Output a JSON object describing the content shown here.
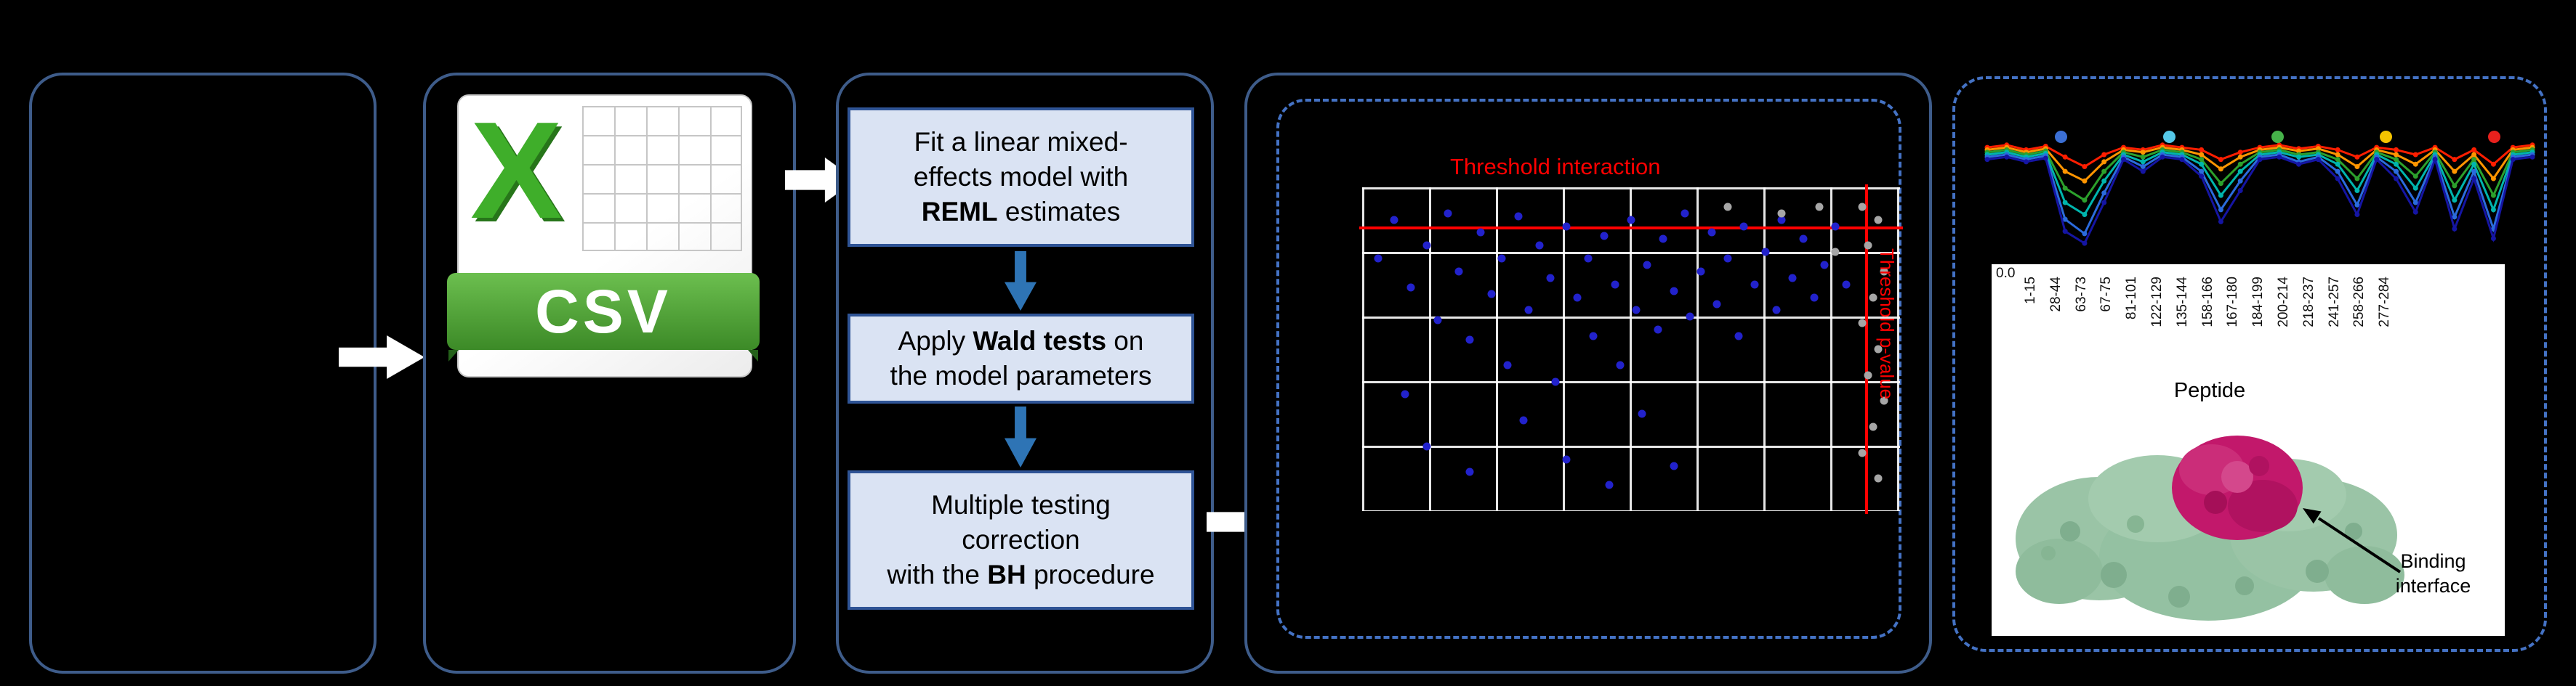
{
  "canvas": {
    "background": "#000000"
  },
  "csv_icon": {
    "x_label": "X",
    "banner_label": "CSV"
  },
  "steps": [
    {
      "segments": [
        {
          "text": "Fit a linear mixed-"
        },
        {
          "br": true
        },
        {
          "text": "effects model with"
        },
        {
          "br": true
        },
        {
          "text": "REML",
          "bold": true
        },
        {
          "text": " estimates"
        }
      ]
    },
    {
      "segments": [
        {
          "text": "Apply "
        },
        {
          "text": "Wald tests",
          "bold": true
        },
        {
          "text": " on"
        },
        {
          "br": true
        },
        {
          "text": "the model parameters"
        }
      ]
    },
    {
      "segments": [
        {
          "text": "Multiple testing"
        },
        {
          "br": true
        },
        {
          "text": "correction"
        },
        {
          "br": true
        },
        {
          "text": "with the "
        },
        {
          "text": "BH",
          "bold": true
        },
        {
          "text": " procedure"
        }
      ]
    }
  ],
  "scatter": {
    "title": "Threshold interaction",
    "side_label": "Threshold p-value",
    "point_color_primary": "#2222cc",
    "point_color_secondary": "#a6a6a6",
    "threshold_color": "#ff0000",
    "h_threshold_pct": 12,
    "v_threshold_pct": 93.5,
    "points_blue": [
      [
        3,
        22
      ],
      [
        6,
        10
      ],
      [
        9,
        31
      ],
      [
        12,
        18
      ],
      [
        14,
        41
      ],
      [
        16,
        8
      ],
      [
        18,
        26
      ],
      [
        20,
        47
      ],
      [
        22,
        14
      ],
      [
        24,
        33
      ],
      [
        26,
        22
      ],
      [
        27,
        55
      ],
      [
        29,
        9
      ],
      [
        31,
        38
      ],
      [
        33,
        18
      ],
      [
        35,
        28
      ],
      [
        36,
        60
      ],
      [
        38,
        12
      ],
      [
        40,
        34
      ],
      [
        42,
        22
      ],
      [
        43,
        46
      ],
      [
        45,
        15
      ],
      [
        47,
        30
      ],
      [
        48,
        55
      ],
      [
        50,
        10
      ],
      [
        51,
        38
      ],
      [
        53,
        24
      ],
      [
        55,
        44
      ],
      [
        56,
        16
      ],
      [
        58,
        32
      ],
      [
        60,
        8
      ],
      [
        61,
        40
      ],
      [
        63,
        26
      ],
      [
        65,
        14
      ],
      [
        66,
        36
      ],
      [
        68,
        22
      ],
      [
        70,
        46
      ],
      [
        71,
        12
      ],
      [
        73,
        30
      ],
      [
        75,
        20
      ],
      [
        77,
        38
      ],
      [
        78,
        10
      ],
      [
        80,
        28
      ],
      [
        82,
        16
      ],
      [
        84,
        34
      ],
      [
        86,
        24
      ],
      [
        88,
        12
      ],
      [
        90,
        30
      ],
      [
        12,
        80
      ],
      [
        20,
        88
      ],
      [
        30,
        72
      ],
      [
        38,
        84
      ],
      [
        52,
        70
      ],
      [
        58,
        86
      ],
      [
        46,
        92
      ],
      [
        8,
        64
      ]
    ],
    "points_gray": [
      [
        93,
        6
      ],
      [
        96,
        10
      ],
      [
        94,
        18
      ],
      [
        97,
        26
      ],
      [
        95,
        34
      ],
      [
        93,
        42
      ],
      [
        96,
        50
      ],
      [
        94,
        58
      ],
      [
        97,
        66
      ],
      [
        95,
        74
      ],
      [
        93,
        82
      ],
      [
        96,
        90
      ],
      [
        85,
        6
      ],
      [
        78,
        8
      ],
      [
        68,
        6
      ],
      [
        88,
        20
      ]
    ]
  },
  "profile_chart": {
    "legend_dot_colors": [
      "#3b6fd4",
      "#55c8e8",
      "#46b24a",
      "#f5c400",
      "#e8211d"
    ],
    "series": [
      {
        "name": "red",
        "color": "#ff1e00",
        "values": [
          0.86,
          0.88,
          0.84,
          0.87,
          0.78,
          0.7,
          0.8,
          0.86,
          0.84,
          0.88,
          0.86,
          0.84,
          0.76,
          0.82,
          0.86,
          0.88,
          0.85,
          0.87,
          0.84,
          0.78,
          0.86,
          0.84,
          0.8,
          0.86,
          0.76,
          0.84,
          0.72,
          0.86,
          0.88
        ]
      },
      {
        "name": "orange",
        "color": "#ff9500",
        "values": [
          0.84,
          0.86,
          0.82,
          0.85,
          0.66,
          0.58,
          0.74,
          0.84,
          0.82,
          0.86,
          0.84,
          0.8,
          0.68,
          0.78,
          0.84,
          0.86,
          0.83,
          0.85,
          0.8,
          0.7,
          0.84,
          0.8,
          0.72,
          0.84,
          0.66,
          0.8,
          0.6,
          0.84,
          0.86
        ]
      },
      {
        "name": "green",
        "color": "#2ca02c",
        "values": [
          0.82,
          0.84,
          0.8,
          0.83,
          0.52,
          0.42,
          0.66,
          0.82,
          0.78,
          0.84,
          0.82,
          0.76,
          0.56,
          0.72,
          0.82,
          0.84,
          0.8,
          0.82,
          0.76,
          0.6,
          0.82,
          0.76,
          0.62,
          0.82,
          0.54,
          0.76,
          0.46,
          0.82,
          0.84
        ]
      },
      {
        "name": "teal",
        "color": "#00b5ad",
        "values": [
          0.8,
          0.82,
          0.78,
          0.81,
          0.4,
          0.3,
          0.58,
          0.8,
          0.74,
          0.82,
          0.8,
          0.72,
          0.46,
          0.66,
          0.8,
          0.82,
          0.78,
          0.8,
          0.72,
          0.5,
          0.8,
          0.72,
          0.52,
          0.8,
          0.42,
          0.72,
          0.34,
          0.8,
          0.82
        ]
      },
      {
        "name": "blue",
        "color": "#2b6bdd",
        "values": [
          0.78,
          0.8,
          0.76,
          0.79,
          0.26,
          0.14,
          0.48,
          0.78,
          0.7,
          0.8,
          0.78,
          0.66,
          0.34,
          0.58,
          0.78,
          0.8,
          0.74,
          0.78,
          0.66,
          0.38,
          0.78,
          0.66,
          0.4,
          0.78,
          0.28,
          0.66,
          0.18,
          0.78,
          0.8
        ]
      },
      {
        "name": "navy",
        "color": "#1515a3",
        "values": [
          0.76,
          0.78,
          0.74,
          0.77,
          0.16,
          0.06,
          0.4,
          0.76,
          0.66,
          0.78,
          0.76,
          0.62,
          0.24,
          0.5,
          0.76,
          0.78,
          0.72,
          0.76,
          0.6,
          0.3,
          0.76,
          0.6,
          0.32,
          0.76,
          0.18,
          0.6,
          0.1,
          0.76,
          0.78
        ]
      }
    ]
  },
  "peptide_axis": {
    "tick_label": "0.0",
    "axis_title": "Peptide",
    "labels": [
      "1-15",
      "28-44",
      "63-73",
      "67-75",
      "81-101",
      "122-129",
      "135-144",
      "158-166",
      "167-180",
      "184-199",
      "200-214",
      "218-237",
      "241-257",
      "258-266",
      "277-284"
    ]
  },
  "structure": {
    "label_line1": "Binding",
    "label_line2": "interface",
    "surface_color": "#9ac4a6",
    "interface_color": "#c2186b"
  }
}
